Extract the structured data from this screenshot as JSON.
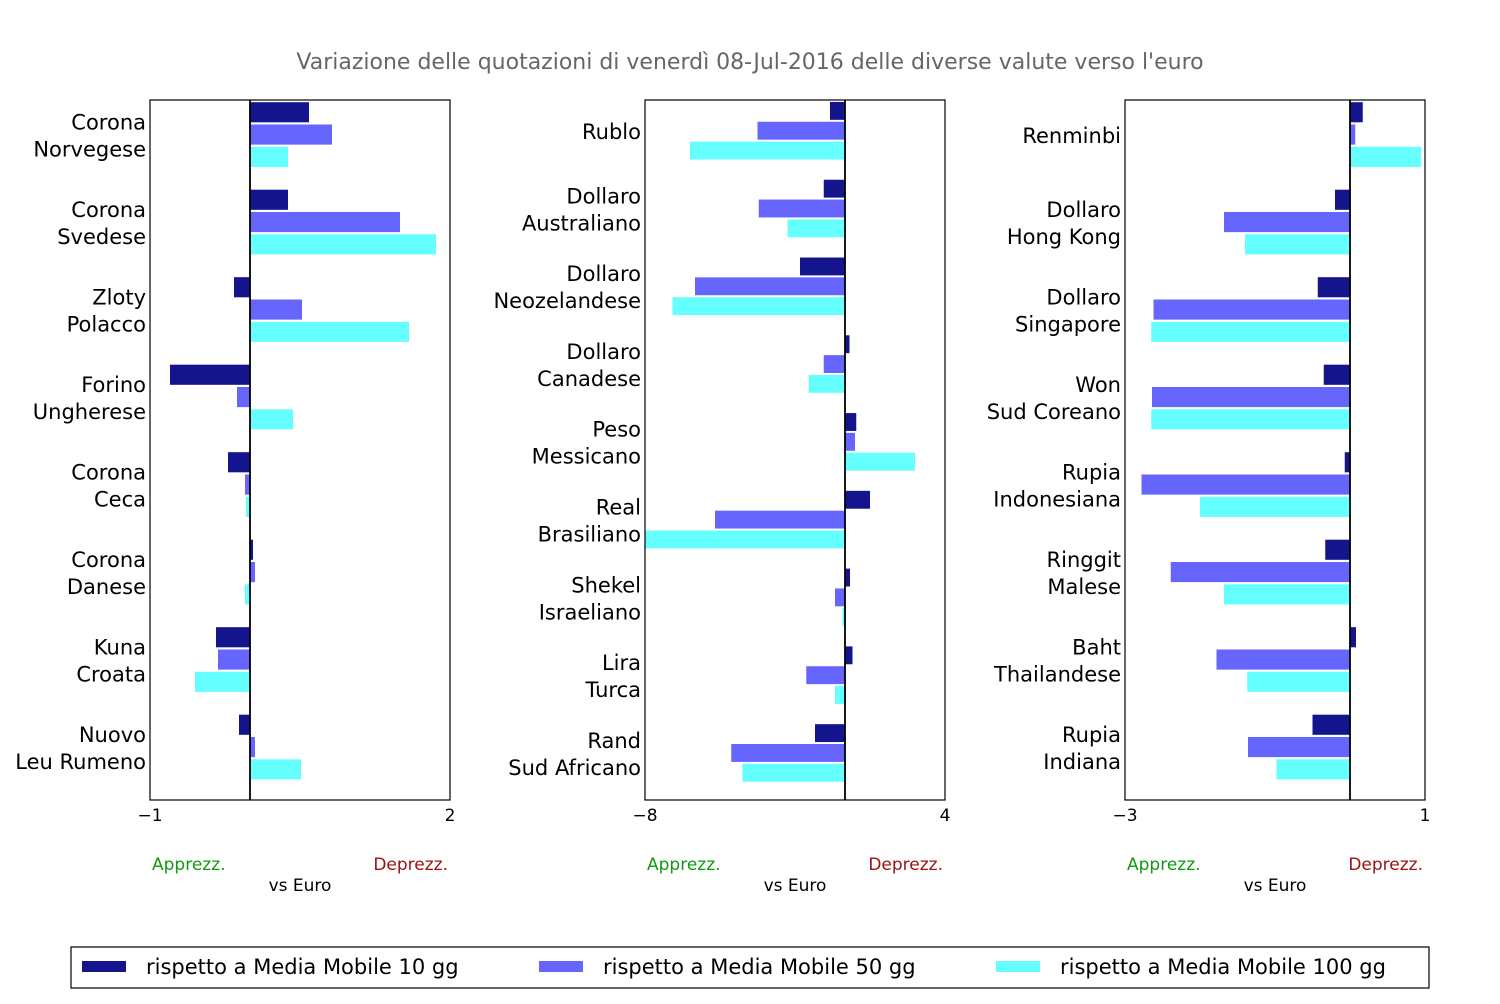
{
  "title": "Variazione delle quotazioni di venerdì 08-Jul-2016 delle diverse valute verso l'euro",
  "colors": {
    "ma10": "#14148c",
    "ma50": "#6666ff",
    "ma100": "#66ffff",
    "apprezz": "#119911",
    "deprezz": "#991111",
    "title": "#666666"
  },
  "legend": [
    {
      "key": "ma10",
      "label": "rispetto a Media Mobile 10 gg"
    },
    {
      "key": "ma50",
      "label": "rispetto a Media Mobile 50 gg"
    },
    {
      "key": "ma100",
      "label": "rispetto a Media Mobile 100 gg"
    }
  ],
  "chart_data": [
    {
      "type": "bar",
      "orientation": "horizontal",
      "xlabel": "vs Euro",
      "left_note": "Apprezz.",
      "right_note": "Deprezz.",
      "xlim": [
        -1,
        2
      ],
      "xticks": [
        "−1",
        "2"
      ],
      "categories": [
        [
          "Corona",
          "Norvegese"
        ],
        [
          "Corona",
          "Svedese"
        ],
        [
          "Zloty",
          "Polacco"
        ],
        [
          "Forino",
          "Ungherese"
        ],
        [
          "Corona",
          "Ceca"
        ],
        [
          "Corona",
          "Danese"
        ],
        [
          "Kuna",
          "Croata"
        ],
        [
          "Nuovo",
          "Leu Rumeno"
        ]
      ],
      "series": [
        {
          "name": "rispetto a Media Mobile 10 gg",
          "key": "ma10",
          "values": [
            0.59,
            0.38,
            -0.16,
            -0.8,
            -0.22,
            0.03,
            -0.34,
            -0.11
          ]
        },
        {
          "name": "rispetto a Media Mobile 50 gg",
          "key": "ma50",
          "values": [
            0.82,
            1.5,
            0.52,
            -0.13,
            -0.05,
            0.05,
            -0.32,
            0.05
          ]
        },
        {
          "name": "rispetto a Media Mobile 100 gg",
          "key": "ma100",
          "values": [
            0.38,
            1.86,
            1.59,
            0.43,
            -0.04,
            -0.05,
            -0.55,
            0.51
          ]
        }
      ]
    },
    {
      "type": "bar",
      "orientation": "horizontal",
      "xlabel": "vs Euro",
      "left_note": "Apprezz.",
      "right_note": "Deprezz.",
      "xlim": [
        -8,
        4
      ],
      "xticks": [
        "−8",
        "4"
      ],
      "categories": [
        [
          "Rublo"
        ],
        [
          "Dollaro",
          "Australiano"
        ],
        [
          "Dollaro",
          "Neozelandese"
        ],
        [
          "Dollaro",
          "Canadese"
        ],
        [
          "Peso",
          "Messicano"
        ],
        [
          "Real",
          "Brasiliano"
        ],
        [
          "Shekel",
          "Israeliano"
        ],
        [
          "Lira",
          "Turca"
        ],
        [
          "Rand",
          "Sud Africano"
        ]
      ],
      "series": [
        {
          "name": "rispetto a Media Mobile 10 gg",
          "key": "ma10",
          "values": [
            -0.6,
            -0.85,
            -1.8,
            0.18,
            0.45,
            1.0,
            0.2,
            0.3,
            -1.2
          ]
        },
        {
          "name": "rispetto a Media Mobile 50 gg",
          "key": "ma50",
          "values": [
            -3.5,
            -3.45,
            -6.0,
            -0.85,
            0.4,
            -5.2,
            -0.4,
            -1.55,
            -4.55
          ]
        },
        {
          "name": "rispetto a Media Mobile 100 gg",
          "key": "ma100",
          "values": [
            -6.2,
            -2.3,
            -6.9,
            -1.45,
            2.8,
            -8.0,
            -0.1,
            -0.4,
            -4.1
          ]
        }
      ]
    },
    {
      "type": "bar",
      "orientation": "horizontal",
      "xlabel": "vs Euro",
      "left_note": "Apprezz.",
      "right_note": "Deprezz.",
      "xlim": [
        -3,
        1
      ],
      "xticks": [
        "−3",
        "1"
      ],
      "categories": [
        [
          "Renminbi"
        ],
        [
          "Dollaro",
          "Hong Kong"
        ],
        [
          "Dollaro",
          "Singapore"
        ],
        [
          "Won",
          "Sud Coreano"
        ],
        [
          "Rupia",
          "Indonesiana"
        ],
        [
          "Ringgit",
          "Malese"
        ],
        [
          "Baht",
          "Thailandese"
        ],
        [
          "Rupia",
          "Indiana"
        ]
      ],
      "series": [
        {
          "name": "rispetto a Media Mobile 10 gg",
          "key": "ma10",
          "values": [
            0.17,
            -0.2,
            -0.43,
            -0.35,
            -0.07,
            -0.33,
            0.08,
            -0.5
          ]
        },
        {
          "name": "rispetto a Media Mobile 50 gg",
          "key": "ma50",
          "values": [
            0.07,
            -1.68,
            -2.62,
            -2.64,
            -2.78,
            -2.39,
            -1.78,
            -1.36
          ]
        },
        {
          "name": "rispetto a Media Mobile 100 gg",
          "key": "ma100",
          "values": [
            0.95,
            -1.4,
            -2.65,
            -2.65,
            -2.0,
            -1.68,
            -1.37,
            -0.98
          ]
        }
      ]
    }
  ]
}
